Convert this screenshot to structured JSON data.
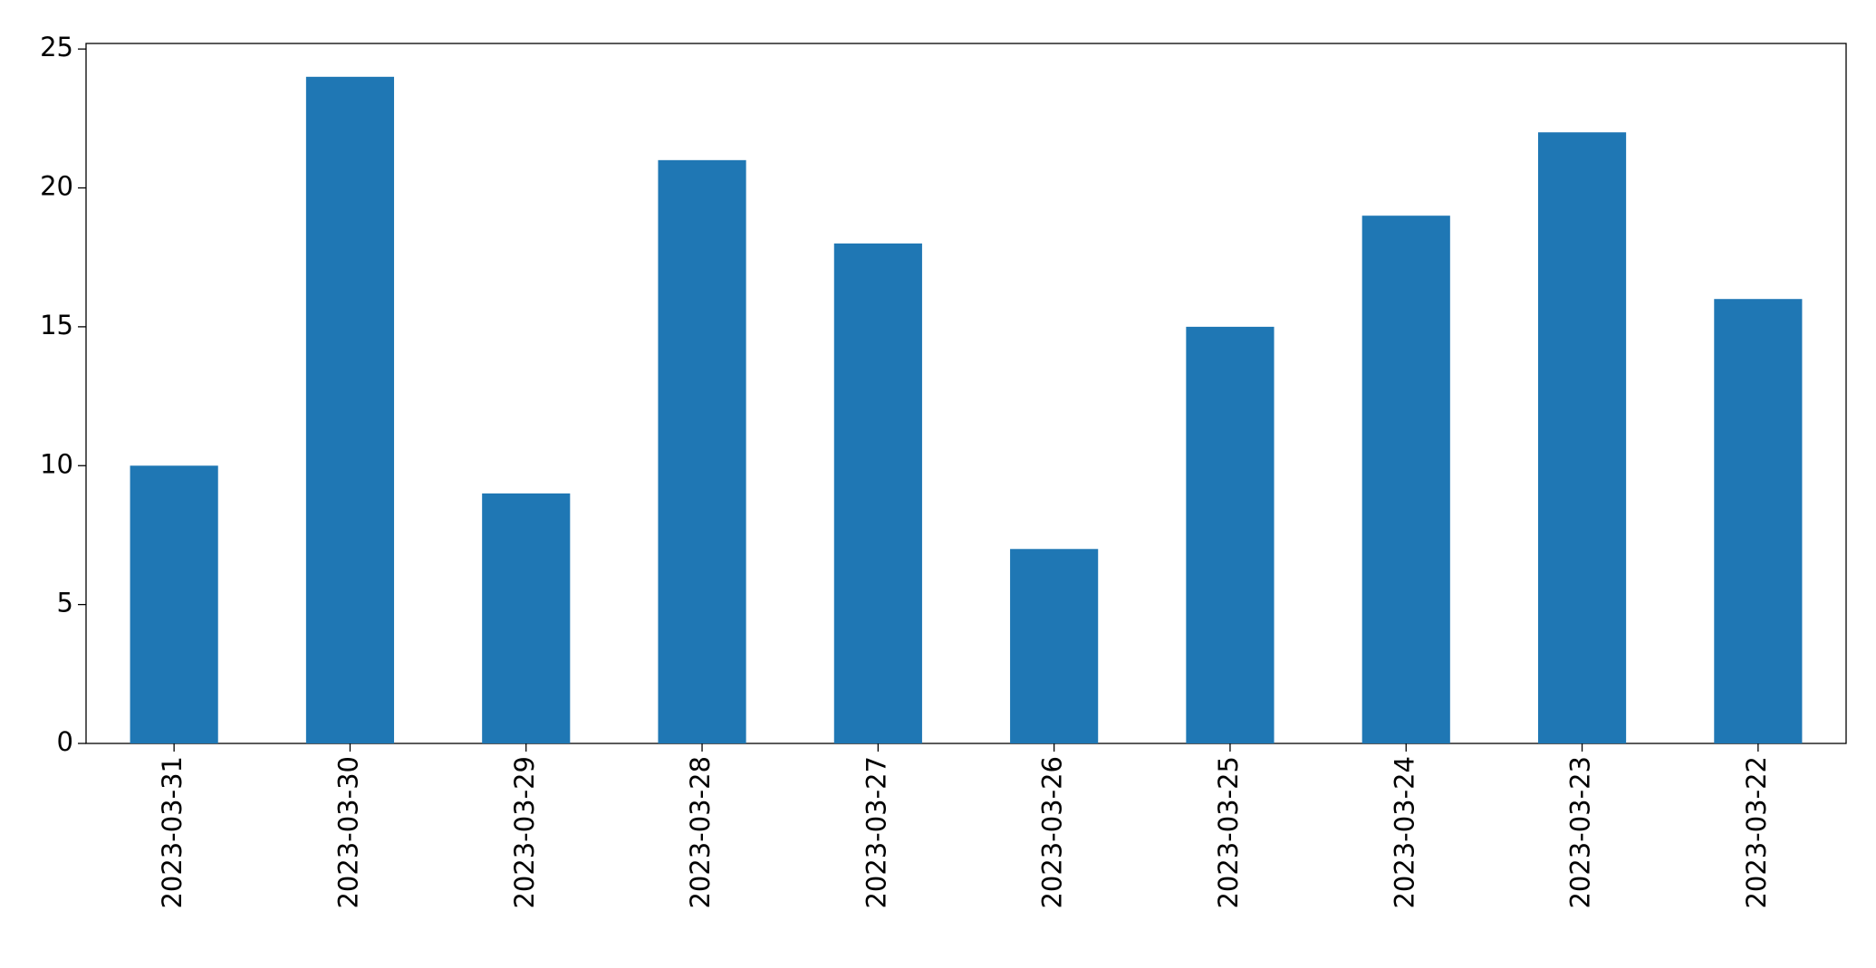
{
  "chart_data": {
    "type": "bar",
    "categories": [
      "2023-03-31",
      "2023-03-30",
      "2023-03-29",
      "2023-03-28",
      "2023-03-27",
      "2023-03-26",
      "2023-03-25",
      "2023-03-24",
      "2023-03-23",
      "2023-03-22"
    ],
    "values": [
      10,
      24,
      9,
      21,
      18,
      7,
      15,
      19,
      22,
      16
    ],
    "color": "#1f77b4",
    "ylim": [
      0,
      25.2
    ],
    "yticks": [
      0,
      5,
      10,
      15,
      20,
      25
    ],
    "grid": false
  }
}
